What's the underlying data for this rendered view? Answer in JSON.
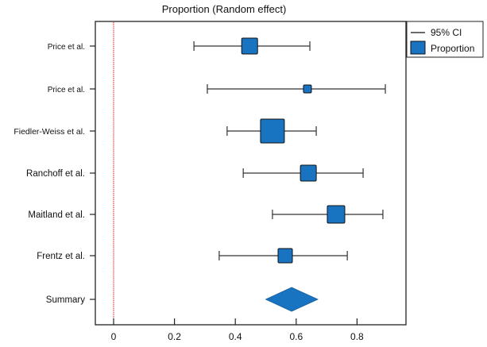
{
  "chart_data": {
    "type": "forest",
    "title": "Proportion (Random effect)",
    "xlabel": "",
    "ylabel": "",
    "xlim": [
      -0.06,
      0.96
    ],
    "xticks": [
      "0",
      "0.2",
      "0.4",
      "0.6",
      "0.8"
    ],
    "reference_line": {
      "x": 0,
      "color": "#e02020",
      "style": "dotted"
    },
    "grid": false,
    "legend": {
      "placement": "top-right",
      "entries": [
        "95% CI",
        "Proportion"
      ]
    },
    "marker_color": "#1874c1",
    "studies": [
      {
        "label": "Price et al.",
        "estimate": 0.447,
        "ci_low": 0.264,
        "ci_high": 0.645
      },
      {
        "label": "Price et al.",
        "estimate": 0.637,
        "ci_low": 0.308,
        "ci_high": 0.893
      },
      {
        "label": "Fiedler-Weiss et al.",
        "estimate": 0.522,
        "ci_low": 0.373,
        "ci_high": 0.666
      },
      {
        "label": "Ranchoff et al.",
        "estimate": 0.64,
        "ci_low": 0.426,
        "ci_high": 0.82
      },
      {
        "label": "Maitland et al.",
        "estimate": 0.731,
        "ci_low": 0.522,
        "ci_high": 0.885
      },
      {
        "label": "Frentz et al.",
        "estimate": 0.564,
        "ci_low": 0.347,
        "ci_high": 0.768
      }
    ],
    "summary": {
      "label": "Summary",
      "estimate": 0.585,
      "ci_low": 0.5,
      "ci_high": 0.671
    }
  }
}
